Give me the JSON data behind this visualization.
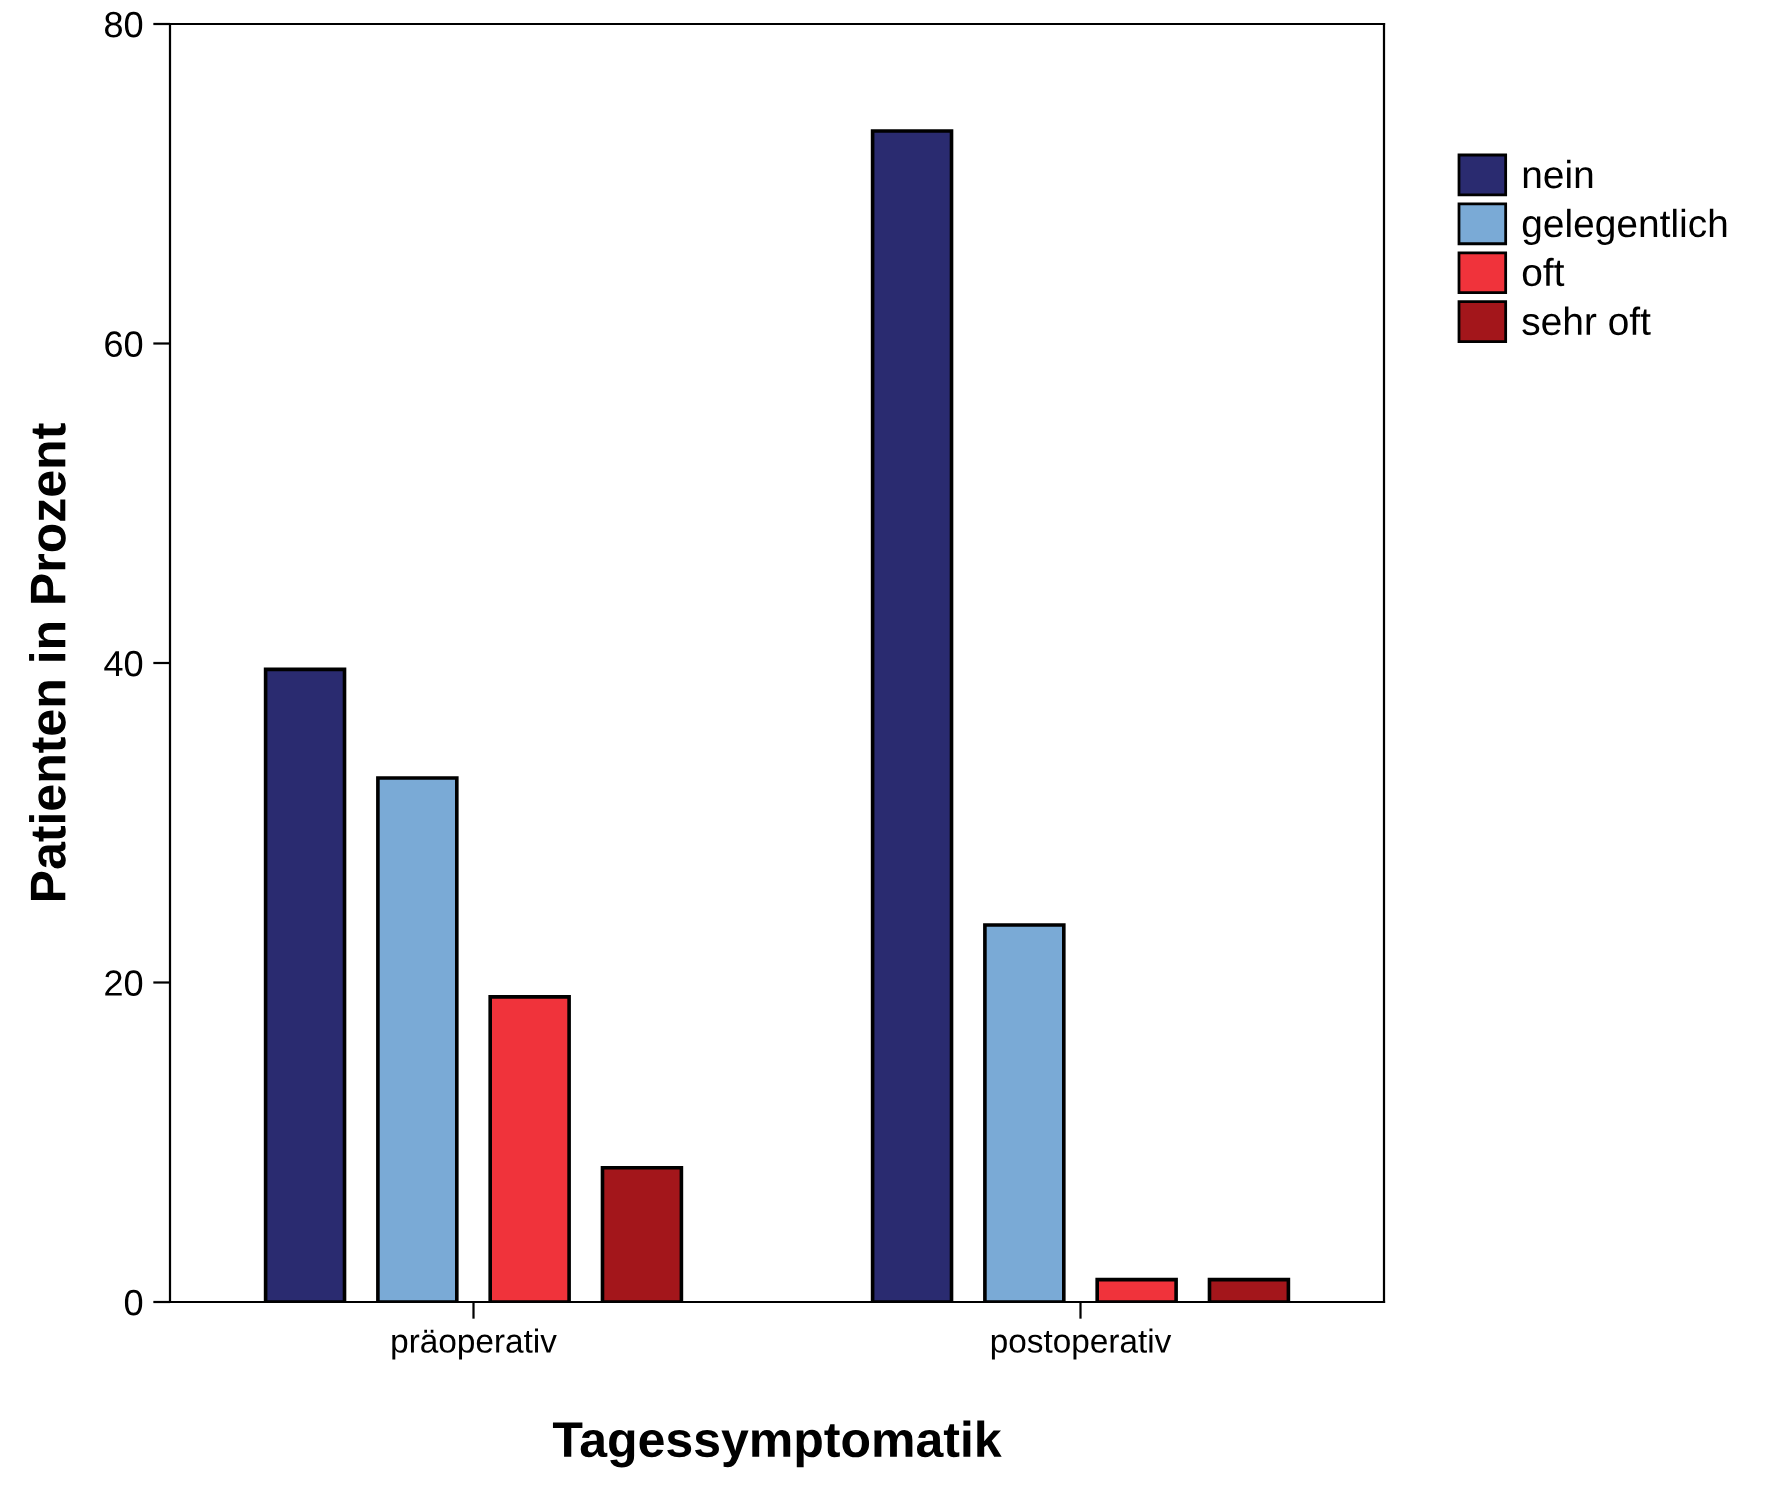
{
  "chart_data": {
    "type": "bar",
    "xlabel": "Tagessymptomatik",
    "ylabel": "Patienten in Prozent",
    "categories": [
      "präoperativ",
      "postoperativ"
    ],
    "series": [
      {
        "name": "nein",
        "color": "#2a2b70",
        "values": [
          39.6,
          73.3
        ]
      },
      {
        "name": "gelegentlich",
        "color": "#7aaad6",
        "values": [
          32.8,
          23.6
        ]
      },
      {
        "name": "oft",
        "color": "#f0333b",
        "values": [
          19.1,
          1.4
        ]
      },
      {
        "name": "sehr oft",
        "color": "#a3161b",
        "values": [
          8.4,
          1.4
        ]
      }
    ],
    "ylim": [
      0,
      80
    ],
    "yticks": [
      0,
      20,
      40,
      60,
      80
    ],
    "grid": false,
    "legend": "top right"
  }
}
